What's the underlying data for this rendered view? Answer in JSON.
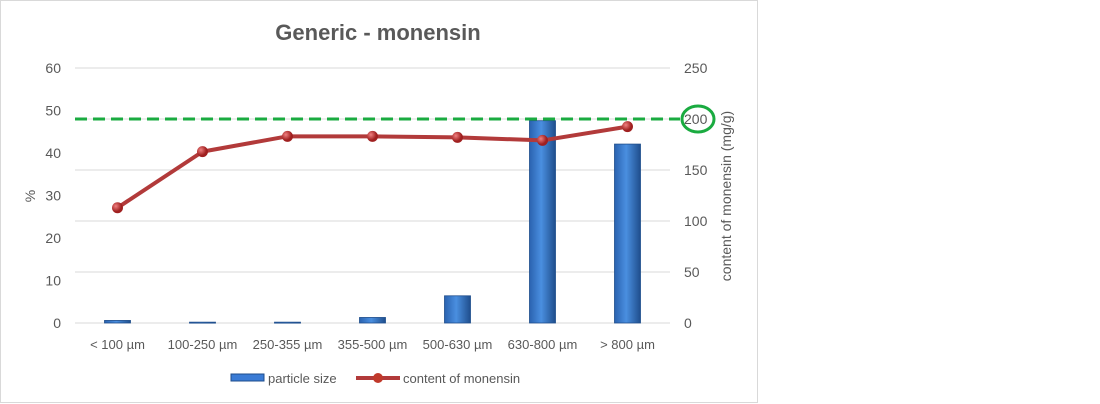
{
  "chart_data": {
    "type": "bar+line",
    "title": "Generic - monensin",
    "categories": [
      "< 100 µm",
      "100-250 µm",
      "250-355 µm",
      "355-500 µm",
      "500-630 µm",
      "630-800 µm",
      "> 800 µm"
    ],
    "series": [
      {
        "name": "particle size",
        "type": "bar",
        "axis": "left",
        "color": "#3a7bd5",
        "values": [
          0.6,
          0.2,
          0.2,
          1.3,
          6.4,
          47.6,
          42.1
        ]
      },
      {
        "name": "content of monensin",
        "type": "line",
        "axis": "right",
        "color": "#c0392b",
        "values": [
          113,
          168,
          183,
          183,
          182,
          179,
          192.5
        ]
      }
    ],
    "ylabel": "%",
    "y2label": "content of monensin (mg/g)",
    "ylim": [
      0,
      60
    ],
    "y2lim": [
      0,
      250
    ],
    "yticks": [
      "0",
      "10",
      "20",
      "30",
      "40",
      "50",
      "60"
    ],
    "y2ticks": [
      "0",
      "50",
      "100",
      "150",
      "200",
      "250"
    ],
    "reference_line": {
      "axis": "right",
      "value": 200,
      "color": "#1aab40",
      "style": "dashed"
    },
    "highlighted_tick": "200",
    "grid": true,
    "legend": "bottom"
  }
}
